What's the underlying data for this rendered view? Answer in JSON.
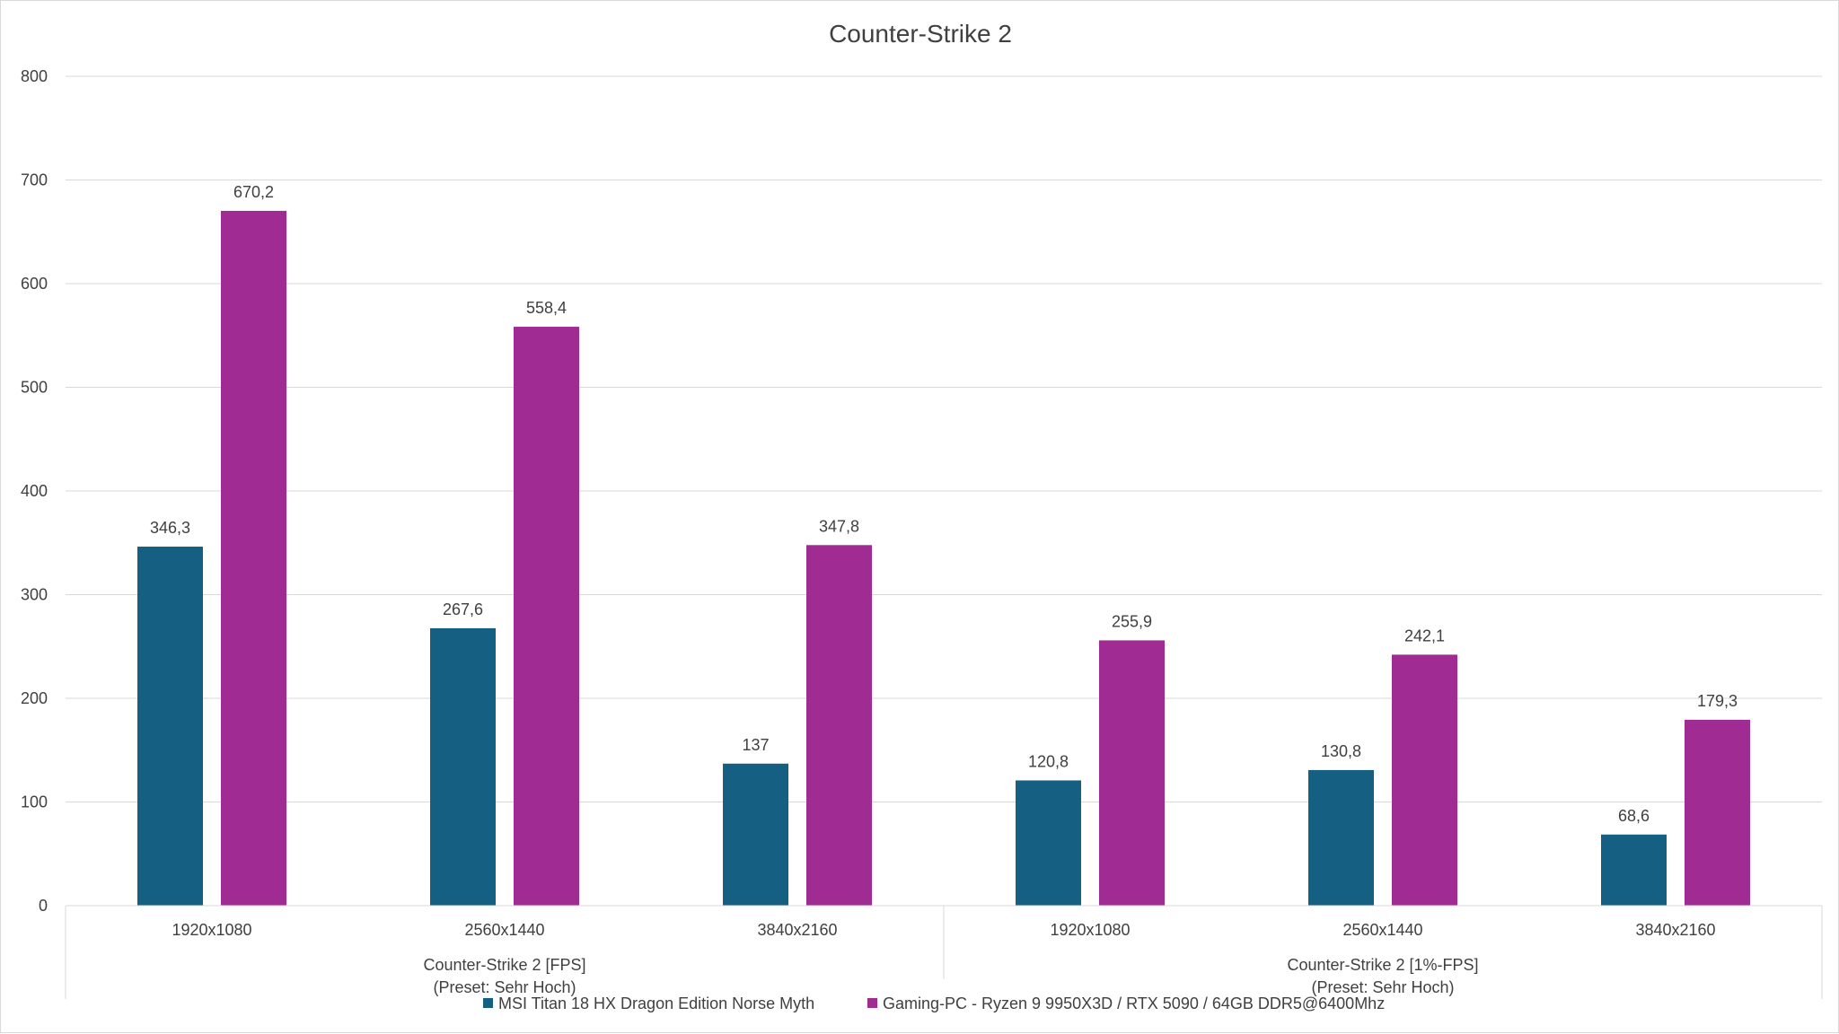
{
  "chart_data": {
    "type": "bar",
    "title": "Counter-Strike 2",
    "ylim": [
      0,
      800
    ],
    "yticks": [
      0,
      100,
      200,
      300,
      400,
      500,
      600,
      700,
      800
    ],
    "grid": true,
    "legend_position": "bottom",
    "groups": [
      {
        "label_lines": [
          "Counter-Strike 2 [FPS]",
          "(Preset: Sehr Hoch)"
        ],
        "categories": [
          "1920x1080",
          "2560x1440",
          "3840x2160"
        ]
      },
      {
        "label_lines": [
          "Counter-Strike 2 [1%-FPS]",
          "(Preset: Sehr Hoch)"
        ],
        "categories": [
          "1920x1080",
          "2560x1440",
          "3840x2160"
        ]
      }
    ],
    "categories": [
      "1920x1080",
      "2560x1440",
      "3840x2160",
      "1920x1080",
      "2560x1440",
      "3840x2160"
    ],
    "series": [
      {
        "name": "MSI Titan 18 HX Dragon Edition Norse Myth",
        "color": "#156082",
        "values": [
          346.3,
          267.6,
          137,
          120.8,
          130.8,
          68.6
        ],
        "labels": [
          "346,3",
          "267,6",
          "137",
          "120,8",
          "130,8",
          "68,6"
        ]
      },
      {
        "name": "Gaming-PC - Ryzen 9 9950X3D / RTX 5090 / 64GB DDR5@6400Mhz",
        "color": "#A02B93",
        "values": [
          670.2,
          558.4,
          347.8,
          255.9,
          242.1,
          179.3
        ],
        "labels": [
          "670,2",
          "558,4",
          "347,8",
          "255,9",
          "242,1",
          "179,3"
        ]
      }
    ]
  }
}
